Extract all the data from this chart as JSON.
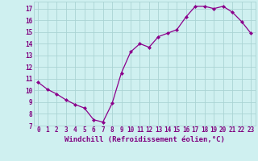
{
  "x": [
    0,
    1,
    2,
    3,
    4,
    5,
    6,
    7,
    8,
    9,
    10,
    11,
    12,
    13,
    14,
    15,
    16,
    17,
    18,
    19,
    20,
    21,
    22,
    23
  ],
  "y": [
    10.7,
    10.1,
    9.7,
    9.2,
    8.8,
    8.5,
    7.5,
    7.3,
    8.9,
    11.5,
    13.3,
    14.0,
    13.7,
    14.6,
    14.9,
    15.2,
    16.3,
    17.2,
    17.2,
    17.0,
    17.2,
    16.7,
    15.9,
    14.9
  ],
  "line_color": "#8B008B",
  "marker": "D",
  "marker_size": 2.0,
  "bg_color": "#cff0f0",
  "grid_color": "#aad4d4",
  "xlabel": "Windchill (Refroidissement éolien,°C)",
  "xlim": [
    -0.5,
    23.5
  ],
  "ylim": [
    7,
    17.6
  ],
  "yticks": [
    7,
    8,
    9,
    10,
    11,
    12,
    13,
    14,
    15,
    16,
    17
  ],
  "xticks": [
    0,
    1,
    2,
    3,
    4,
    5,
    6,
    7,
    8,
    9,
    10,
    11,
    12,
    13,
    14,
    15,
    16,
    17,
    18,
    19,
    20,
    21,
    22,
    23
  ],
  "tick_label_color": "#800080",
  "tick_label_size": 5.5,
  "xlabel_size": 6.5,
  "line_width": 0.9
}
